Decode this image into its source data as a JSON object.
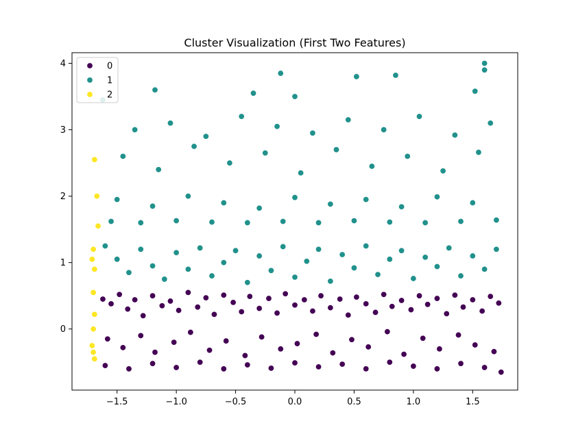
{
  "chart_data": {
    "type": "scatter",
    "title": "Cluster Visualization (First Two Features)",
    "xlabel": "",
    "ylabel": "",
    "xlim": [
      -1.88,
      1.88
    ],
    "ylim": [
      -0.92,
      4.16
    ],
    "xticks": [
      -1.5,
      -1.0,
      -0.5,
      0.0,
      0.5,
      1.0,
      1.5
    ],
    "xtick_labels": [
      "−1.5",
      "−1.0",
      "−0.5",
      "0.0",
      "0.5",
      "1.0",
      "1.5"
    ],
    "yticks": [
      0,
      1,
      2,
      3,
      4
    ],
    "ytick_labels": [
      "0",
      "1",
      "2",
      "3",
      "4"
    ],
    "grid": false,
    "legend_position": "top-left",
    "series": [
      {
        "name": "0",
        "color": "#440154",
        "points": [
          [
            -1.62,
            0.45
          ],
          [
            -1.55,
            0.38
          ],
          [
            -1.48,
            0.52
          ],
          [
            -1.41,
            0.3
          ],
          [
            -1.35,
            0.44
          ],
          [
            -1.28,
            0.2
          ],
          [
            -1.2,
            0.5
          ],
          [
            -1.12,
            0.35
          ],
          [
            -1.05,
            0.42
          ],
          [
            -0.98,
            0.28
          ],
          [
            -0.9,
            0.55
          ],
          [
            -0.82,
            0.33
          ],
          [
            -0.75,
            0.47
          ],
          [
            -0.68,
            0.22
          ],
          [
            -0.6,
            0.51
          ],
          [
            -0.52,
            0.4
          ],
          [
            -0.45,
            0.26
          ],
          [
            -0.38,
            0.49
          ],
          [
            -0.3,
            0.31
          ],
          [
            -0.22,
            0.46
          ],
          [
            -0.15,
            0.24
          ],
          [
            -0.08,
            0.53
          ],
          [
            0.0,
            0.36
          ],
          [
            0.08,
            0.44
          ],
          [
            0.15,
            0.27
          ],
          [
            0.22,
            0.5
          ],
          [
            0.3,
            0.32
          ],
          [
            0.38,
            0.45
          ],
          [
            0.45,
            0.21
          ],
          [
            0.52,
            0.48
          ],
          [
            0.6,
            0.38
          ],
          [
            0.68,
            0.25
          ],
          [
            0.75,
            0.52
          ],
          [
            0.82,
            0.34
          ],
          [
            0.9,
            0.43
          ],
          [
            0.98,
            0.29
          ],
          [
            1.05,
            0.5
          ],
          [
            1.12,
            0.37
          ],
          [
            1.2,
            0.46
          ],
          [
            1.28,
            0.23
          ],
          [
            1.35,
            0.51
          ],
          [
            1.42,
            0.33
          ],
          [
            1.5,
            0.44
          ],
          [
            1.58,
            0.27
          ],
          [
            1.65,
            0.49
          ],
          [
            1.72,
            0.39
          ],
          [
            -1.58,
            -0.15
          ],
          [
            -1.45,
            -0.28
          ],
          [
            -1.3,
            -0.1
          ],
          [
            -1.18,
            -0.35
          ],
          [
            -1.02,
            -0.2
          ],
          [
            -0.88,
            -0.05
          ],
          [
            -0.72,
            -0.32
          ],
          [
            -0.58,
            -0.18
          ],
          [
            -0.42,
            -0.4
          ],
          [
            -0.28,
            -0.12
          ],
          [
            -0.12,
            -0.3
          ],
          [
            0.02,
            -0.22
          ],
          [
            0.18,
            -0.08
          ],
          [
            0.32,
            -0.36
          ],
          [
            0.48,
            -0.16
          ],
          [
            0.62,
            -0.27
          ],
          [
            0.78,
            -0.04
          ],
          [
            0.92,
            -0.38
          ],
          [
            1.08,
            -0.14
          ],
          [
            1.22,
            -0.3
          ],
          [
            1.38,
            -0.09
          ],
          [
            1.52,
            -0.24
          ],
          [
            1.68,
            -0.34
          ],
          [
            -1.6,
            -0.55
          ],
          [
            -1.4,
            -0.6
          ],
          [
            -1.2,
            -0.52
          ],
          [
            -1.0,
            -0.58
          ],
          [
            -0.8,
            -0.5
          ],
          [
            -0.6,
            -0.6
          ],
          [
            -0.4,
            -0.54
          ],
          [
            -0.2,
            -0.59
          ],
          [
            0.0,
            -0.51
          ],
          [
            0.2,
            -0.57
          ],
          [
            0.4,
            -0.53
          ],
          [
            0.6,
            -0.6
          ],
          [
            0.8,
            -0.5
          ],
          [
            1.0,
            -0.56
          ],
          [
            1.2,
            -0.6
          ],
          [
            1.4,
            -0.52
          ],
          [
            1.6,
            -0.58
          ],
          [
            1.74,
            -0.65
          ]
        ]
      },
      {
        "name": "1",
        "color": "#21918c",
        "points": [
          [
            -1.6,
            1.25
          ],
          [
            -1.5,
            1.05
          ],
          [
            -1.4,
            0.85
          ],
          [
            -1.3,
            1.2
          ],
          [
            -1.2,
            0.95
          ],
          [
            -1.1,
            0.75
          ],
          [
            -1.0,
            1.15
          ],
          [
            -0.9,
            0.9
          ],
          [
            -0.8,
            1.22
          ],
          [
            -0.7,
            0.8
          ],
          [
            -0.6,
            1.0
          ],
          [
            -0.5,
            1.18
          ],
          [
            -0.4,
            0.7
          ],
          [
            -0.3,
            1.1
          ],
          [
            -0.2,
            0.88
          ],
          [
            -0.1,
            1.24
          ],
          [
            0.0,
            0.78
          ],
          [
            0.1,
            1.02
          ],
          [
            0.2,
            1.2
          ],
          [
            0.3,
            0.72
          ],
          [
            0.4,
            1.12
          ],
          [
            0.5,
            0.92
          ],
          [
            0.6,
            1.25
          ],
          [
            0.7,
            0.82
          ],
          [
            0.8,
            1.05
          ],
          [
            0.9,
            1.18
          ],
          [
            1.0,
            0.76
          ],
          [
            1.1,
            1.08
          ],
          [
            1.2,
            0.94
          ],
          [
            1.3,
            1.22
          ],
          [
            1.4,
            0.8
          ],
          [
            1.5,
            1.1
          ],
          [
            1.6,
            0.9
          ],
          [
            1.7,
            1.2
          ],
          [
            -1.55,
            1.62
          ],
          [
            -1.3,
            1.6
          ],
          [
            -1.0,
            1.63
          ],
          [
            -0.7,
            1.61
          ],
          [
            -0.4,
            1.6
          ],
          [
            -0.1,
            1.62
          ],
          [
            0.2,
            1.6
          ],
          [
            0.5,
            1.63
          ],
          [
            0.8,
            1.61
          ],
          [
            1.1,
            1.6
          ],
          [
            1.4,
            1.62
          ],
          [
            1.7,
            1.64
          ],
          [
            -1.5,
            1.95
          ],
          [
            -1.2,
            1.85
          ],
          [
            -0.9,
            2.0
          ],
          [
            -0.6,
            1.9
          ],
          [
            -0.3,
            1.82
          ],
          [
            0.0,
            1.98
          ],
          [
            0.3,
            1.88
          ],
          [
            0.6,
            1.95
          ],
          [
            0.9,
            1.84
          ],
          [
            1.2,
            1.99
          ],
          [
            1.5,
            1.9
          ],
          [
            -1.45,
            2.6
          ],
          [
            -1.15,
            2.4
          ],
          [
            -0.85,
            2.75
          ],
          [
            -0.55,
            2.5
          ],
          [
            -0.25,
            2.65
          ],
          [
            0.05,
            2.35
          ],
          [
            0.35,
            2.7
          ],
          [
            0.65,
            2.45
          ],
          [
            0.95,
            2.6
          ],
          [
            1.25,
            2.38
          ],
          [
            1.55,
            2.66
          ],
          [
            -1.35,
            3.0
          ],
          [
            -1.05,
            3.1
          ],
          [
            -0.75,
            2.9
          ],
          [
            -0.45,
            3.2
          ],
          [
            -0.15,
            3.05
          ],
          [
            0.15,
            2.95
          ],
          [
            0.45,
            3.15
          ],
          [
            0.75,
            3.0
          ],
          [
            1.05,
            3.2
          ],
          [
            1.35,
            2.92
          ],
          [
            1.65,
            3.1
          ],
          [
            -1.18,
            3.6
          ],
          [
            -0.35,
            3.55
          ],
          [
            0.0,
            3.5
          ],
          [
            0.52,
            3.8
          ],
          [
            0.85,
            3.82
          ],
          [
            -0.12,
            3.85
          ],
          [
            1.6,
            4.0
          ],
          [
            1.6,
            3.9
          ],
          [
            1.52,
            3.58
          ],
          [
            -1.62,
            3.45
          ]
        ]
      },
      {
        "name": "2",
        "color": "#fde725",
        "points": [
          [
            -1.69,
            2.55
          ],
          [
            -1.67,
            2.0
          ],
          [
            -1.66,
            1.55
          ],
          [
            -1.7,
            1.2
          ],
          [
            -1.71,
            1.05
          ],
          [
            -1.69,
            0.9
          ],
          [
            -1.7,
            0.55
          ],
          [
            -1.69,
            0.22
          ],
          [
            -1.7,
            0.0
          ],
          [
            -1.71,
            -0.25
          ],
          [
            -1.7,
            -0.35
          ],
          [
            -1.69,
            -0.45
          ]
        ]
      }
    ]
  }
}
